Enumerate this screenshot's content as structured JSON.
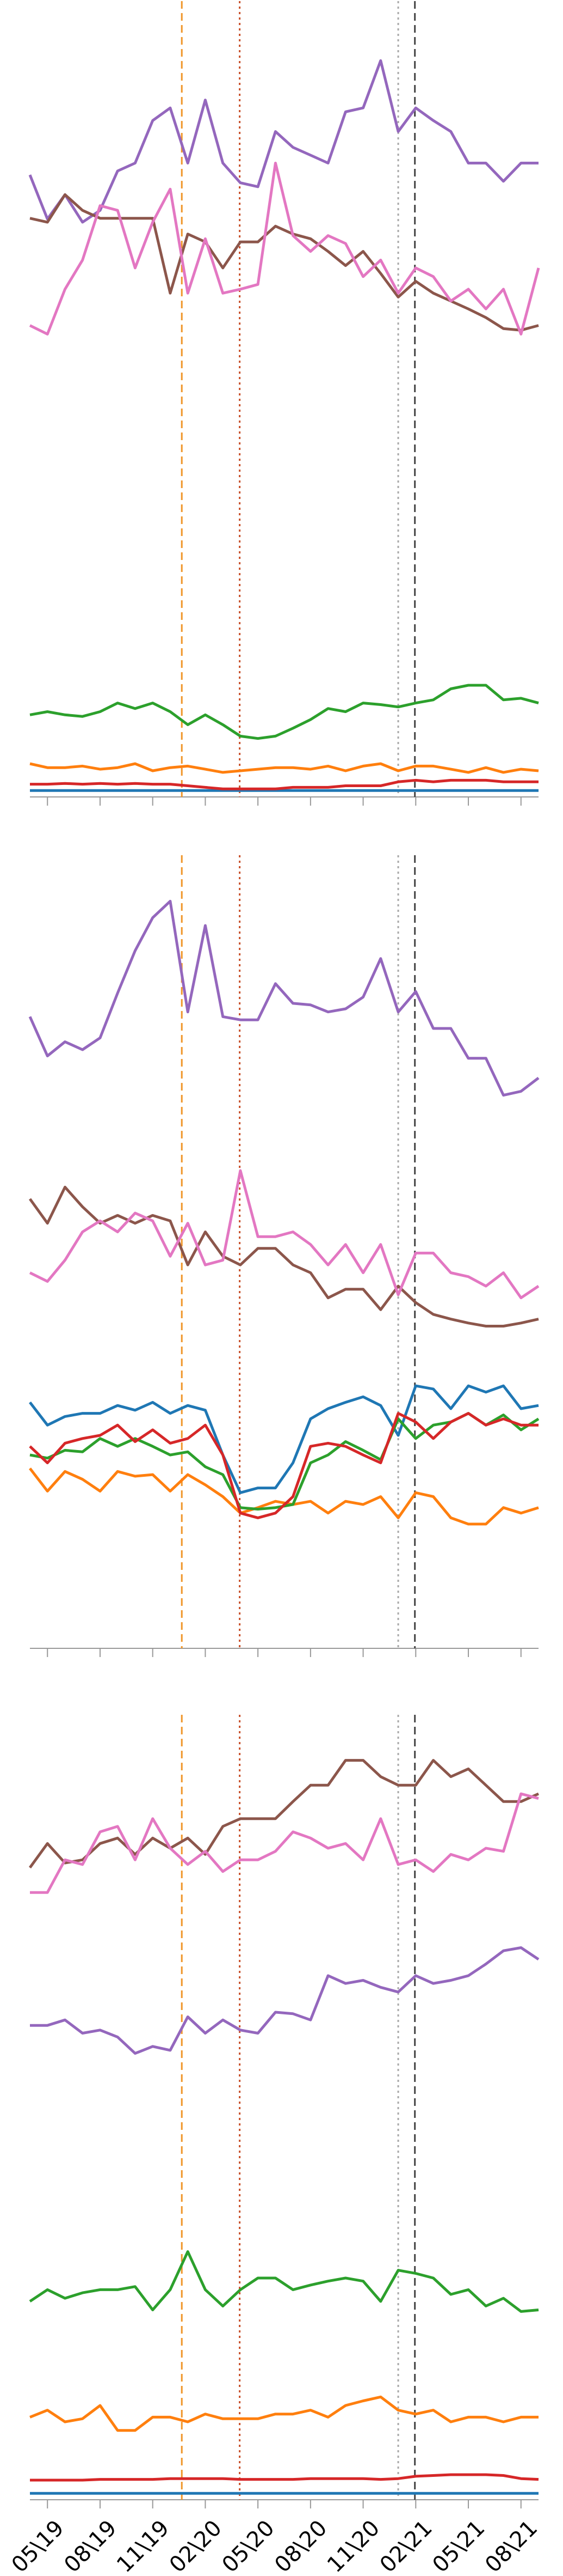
{
  "chart_data": [
    {
      "type": "line",
      "ylim": [
        0,
        100
      ],
      "vlines": [
        {
          "x": 8.66,
          "color": "#f0962a",
          "dash": "dashed"
        },
        {
          "x": 11.96,
          "color": "#c8502a",
          "dash": "dotted"
        },
        {
          "x": 21.0,
          "color": "#aaaaaa",
          "dash": "dotted"
        },
        {
          "x": 21.95,
          "color": "#444444",
          "dash": "dashed"
        }
      ],
      "series": [
        {
          "color": "#1f77b4",
          "values": [
            0.4,
            0.4,
            0.4,
            0.4,
            0.4,
            0.4,
            0.4,
            0.4,
            0.4,
            0.4,
            0.4,
            0.4,
            0.4,
            0.4,
            0.4,
            0.4,
            0.4,
            0.4,
            0.4,
            0.4,
            0.4,
            0.4,
            0.4,
            0.4,
            0.4,
            0.4,
            0.4,
            0.4,
            0.4,
            0.4
          ]
        },
        {
          "color": "#ff7f0e",
          "values": [
            3.8,
            3.3,
            3.3,
            3.5,
            3.1,
            3.3,
            3.8,
            2.9,
            3.3,
            3.5,
            3.1,
            2.7,
            2.9,
            3.1,
            3.3,
            3.3,
            3.1,
            3.5,
            2.9,
            3.5,
            3.8,
            2.9,
            3.5,
            3.5,
            3.1,
            2.7,
            3.3,
            2.7,
            3.1,
            2.9
          ]
        },
        {
          "color": "#2ca02c",
          "values": [
            10,
            10.4,
            10,
            9.8,
            10.4,
            11.5,
            10.8,
            11.5,
            10.4,
            8.75,
            10,
            8.75,
            7.3,
            7,
            7.3,
            8.3,
            9.4,
            10.8,
            10.4,
            11.5,
            11.3,
            11,
            11.5,
            11.9,
            13.3,
            13.75,
            13.75,
            11.9,
            12.1,
            11.5
          ]
        },
        {
          "color": "#d62728",
          "values": [
            1.2,
            1.2,
            1.3,
            1.2,
            1.3,
            1.2,
            1.3,
            1.2,
            1.2,
            1.0,
            0.8,
            0.6,
            0.6,
            0.6,
            0.6,
            0.8,
            0.8,
            0.8,
            1.0,
            1.0,
            1.0,
            1.5,
            1.7,
            1.5,
            1.7,
            1.7,
            1.7,
            1.5,
            1.5,
            1.5
          ]
        },
        {
          "color": "#9467bd",
          "values": [
            78.5,
            72.9,
            76,
            72.5,
            74,
            79,
            80,
            85.4,
            87,
            80,
            88,
            80,
            77.5,
            77,
            84,
            82,
            81,
            80,
            86.5,
            87,
            93,
            84,
            87,
            85.4,
            84,
            80,
            80,
            77.7,
            80,
            80
          ]
        },
        {
          "color": "#8c564b",
          "values": [
            73,
            72.5,
            76,
            74,
            73,
            73,
            73,
            73,
            63.5,
            71,
            70,
            66.7,
            70,
            70,
            72,
            71,
            70.4,
            68.8,
            67,
            68.8,
            66,
            63,
            65,
            63.5,
            62.5,
            61.5,
            60.4,
            59,
            58.8,
            59.4
          ]
        },
        {
          "color": "#e377c2",
          "values": [
            59.4,
            58.3,
            64,
            67.7,
            74.6,
            74,
            66.7,
            72.5,
            76.7,
            63.5,
            70.4,
            63.5,
            64,
            64.6,
            80,
            70.8,
            68.8,
            70.8,
            69.8,
            65.6,
            67.7,
            63.5,
            66.7,
            65.6,
            62.5,
            64,
            61.5,
            64,
            58.3,
            66.7
          ]
        }
      ]
    },
    {
      "type": "line",
      "ylim": [
        0,
        100
      ],
      "vlines": [
        {
          "x": 8.66,
          "color": "#f0962a",
          "dash": "dashed"
        },
        {
          "x": 11.96,
          "color": "#c8502a",
          "dash": "dotted"
        },
        {
          "x": 21.0,
          "color": "#aaaaaa",
          "dash": "dotted"
        },
        {
          "x": 21.95,
          "color": "#444444",
          "dash": "dashed"
        }
      ],
      "series": [
        {
          "color": "#1f77b4",
          "values": [
            30.9,
            28,
            29.1,
            29.5,
            29.5,
            30.5,
            29.9,
            30.9,
            29.5,
            30.5,
            29.9,
            24.2,
            19.4,
            20,
            20,
            23.2,
            28.8,
            30.1,
            30.9,
            31.6,
            30.5,
            26.7,
            33,
            32.6,
            30.1,
            33,
            32.2,
            33,
            30.1,
            30.5
          ]
        },
        {
          "color": "#ff7f0e",
          "values": [
            22.5,
            19.6,
            22.1,
            21.1,
            19.6,
            22.1,
            21.5,
            21.7,
            19.6,
            21.7,
            20.4,
            18.9,
            16.8,
            17.5,
            18.3,
            17.9,
            18.3,
            16.8,
            18.3,
            17.9,
            18.9,
            16.2,
            19.4,
            18.9,
            16.2,
            15.4,
            15.4,
            17.5,
            16.8,
            17.5
          ]
        },
        {
          "color": "#2ca02c",
          "values": [
            24.2,
            23.8,
            24.8,
            24.6,
            26.3,
            25.3,
            26.3,
            25.3,
            24.2,
            24.6,
            22.7,
            21.7,
            17.5,
            17.3,
            17.5,
            17.9,
            23.2,
            24.2,
            25.9,
            24.8,
            23.6,
            28.8,
            26.3,
            28,
            28.4,
            29.5,
            28,
            29.3,
            27.4,
            28.8
          ]
        },
        {
          "color": "#d62728",
          "values": [
            25.3,
            23.2,
            25.7,
            26.3,
            26.7,
            28,
            25.9,
            27.4,
            25.7,
            26.3,
            28,
            24.2,
            16.8,
            16.2,
            16.8,
            18.9,
            25.3,
            25.7,
            25.3,
            24.2,
            23.2,
            29.5,
            28.4,
            26.3,
            28.4,
            29.5,
            28,
            28.8,
            28,
            28
          ]
        },
        {
          "color": "#9467bd",
          "values": [
            80,
            75,
            76.8,
            75.8,
            77.3,
            83,
            88.4,
            92.6,
            94.7,
            80.6,
            91.6,
            80,
            79.6,
            79.6,
            84.2,
            81.7,
            81.5,
            80.6,
            81,
            82.5,
            87.4,
            80.6,
            83.2,
            78.5,
            78.5,
            74.7,
            74.7,
            70,
            70.5,
            72.2
          ]
        },
        {
          "color": "#8c564b",
          "values": [
            56.8,
            53.7,
            58.3,
            55.8,
            53.7,
            54.7,
            53.7,
            54.7,
            54,
            48.4,
            52.6,
            49.5,
            48.4,
            50.5,
            50.5,
            48.4,
            47.4,
            44.2,
            45.3,
            45.3,
            42.7,
            45.7,
            43.6,
            42.1,
            41.5,
            41,
            40.6,
            40.6,
            41,
            41.5
          ]
        },
        {
          "color": "#e377c2",
          "values": [
            47.4,
            46.3,
            49,
            52.6,
            54,
            52.6,
            55,
            54,
            49.5,
            53.7,
            48.4,
            49,
            60.4,
            52,
            52,
            52.6,
            51,
            48.4,
            51,
            47.4,
            51,
            44.6,
            49.9,
            49.9,
            47.4,
            46.9,
            45.7,
            47.4,
            44.2,
            45.7
          ]
        }
      ]
    },
    {
      "type": "line",
      "ylim": [
        0,
        100
      ],
      "categories": [
        null,
        "05\\19",
        null,
        null,
        "08\\19",
        null,
        null,
        "11\\19",
        null,
        null,
        "02\\20",
        null,
        null,
        "05\\20",
        null,
        null,
        "08\\20",
        null,
        null,
        "11\\20",
        null,
        null,
        "02\\21",
        null,
        null,
        "05\\21",
        null,
        null,
        "08\\21",
        null
      ],
      "vlines": [
        {
          "x": 8.66,
          "color": "#f0962a",
          "dash": "dashed"
        },
        {
          "x": 11.96,
          "color": "#c8502a",
          "dash": "dotted"
        },
        {
          "x": 21.0,
          "color": "#aaaaaa",
          "dash": "dotted"
        },
        {
          "x": 21.95,
          "color": "#444444",
          "dash": "dashed"
        }
      ],
      "series": [
        {
          "color": "#1f77b4",
          "values": [
            0.4,
            0.4,
            0.4,
            0.4,
            0.4,
            0.4,
            0.4,
            0.4,
            0.4,
            0.4,
            0.4,
            0.4,
            0.4,
            0.4,
            0.4,
            0.4,
            0.4,
            0.4,
            0.4,
            0.4,
            0.4,
            0.4,
            0.4,
            0.4,
            0.4,
            0.4,
            0.4,
            0.4,
            0.4,
            0.4
          ]
        },
        {
          "color": "#ff7f0e",
          "values": [
            10.2,
            11.1,
            9.6,
            10,
            11.7,
            8.5,
            8.5,
            10.2,
            10.2,
            9.6,
            10.6,
            10,
            10,
            10,
            10.6,
            10.6,
            11.1,
            10.2,
            11.7,
            12.3,
            12.8,
            11.1,
            10.6,
            11.1,
            9.6,
            10.2,
            10.2,
            9.6,
            10.2,
            10.2
          ]
        },
        {
          "color": "#2ca02c",
          "values": [
            25.1,
            26.6,
            25.5,
            26.2,
            26.6,
            26.6,
            27,
            24,
            26.6,
            31.5,
            26.6,
            24.5,
            26.6,
            28.1,
            28.1,
            26.6,
            27.2,
            27.7,
            28.1,
            27.7,
            25.1,
            29.1,
            28.7,
            28.1,
            26,
            26.6,
            24.5,
            25.5,
            23.8,
            24
          ]
        },
        {
          "color": "#d62728",
          "values": [
            2.1,
            2.1,
            2.1,
            2.1,
            2.2,
            2.2,
            2.2,
            2.2,
            2.3,
            2.3,
            2.3,
            2.3,
            2.2,
            2.2,
            2.2,
            2.2,
            2.3,
            2.3,
            2.3,
            2.3,
            2.2,
            2.3,
            2.6,
            2.7,
            2.8,
            2.8,
            2.8,
            2.7,
            2.3,
            2.2
          ]
        },
        {
          "color": "#9467bd",
          "values": [
            60.6,
            60.6,
            61.3,
            59.6,
            60,
            59.1,
            57,
            57.9,
            57.4,
            61.7,
            59.6,
            61.3,
            60,
            59.6,
            62.3,
            62.1,
            61.3,
            67,
            66,
            66.4,
            65.5,
            64.9,
            67,
            66,
            66.4,
            67,
            68.5,
            70.2,
            70.6,
            69.1
          ]
        },
        {
          "color": "#8c564b",
          "values": [
            80.9,
            84,
            81.5,
            81.9,
            84,
            84.7,
            82.6,
            84.7,
            83.4,
            84.7,
            82.6,
            86.2,
            87.2,
            87.2,
            87.2,
            89.4,
            91.5,
            91.5,
            94.7,
            94.7,
            92.6,
            91.5,
            91.5,
            94.7,
            92.6,
            93.6,
            91.5,
            89.4,
            89.4,
            90.4
          ]
        },
        {
          "color": "#e377c2",
          "values": [
            77.7,
            77.7,
            81.9,
            81.3,
            85.5,
            86.2,
            81.9,
            87.2,
            83.4,
            81.3,
            83,
            80.4,
            81.9,
            81.9,
            83,
            85.5,
            84.7,
            83.4,
            84,
            81.9,
            87.2,
            81.3,
            81.9,
            80.4,
            82.6,
            81.9,
            83.4,
            83,
            90.4,
            89.8
          ]
        }
      ]
    }
  ]
}
